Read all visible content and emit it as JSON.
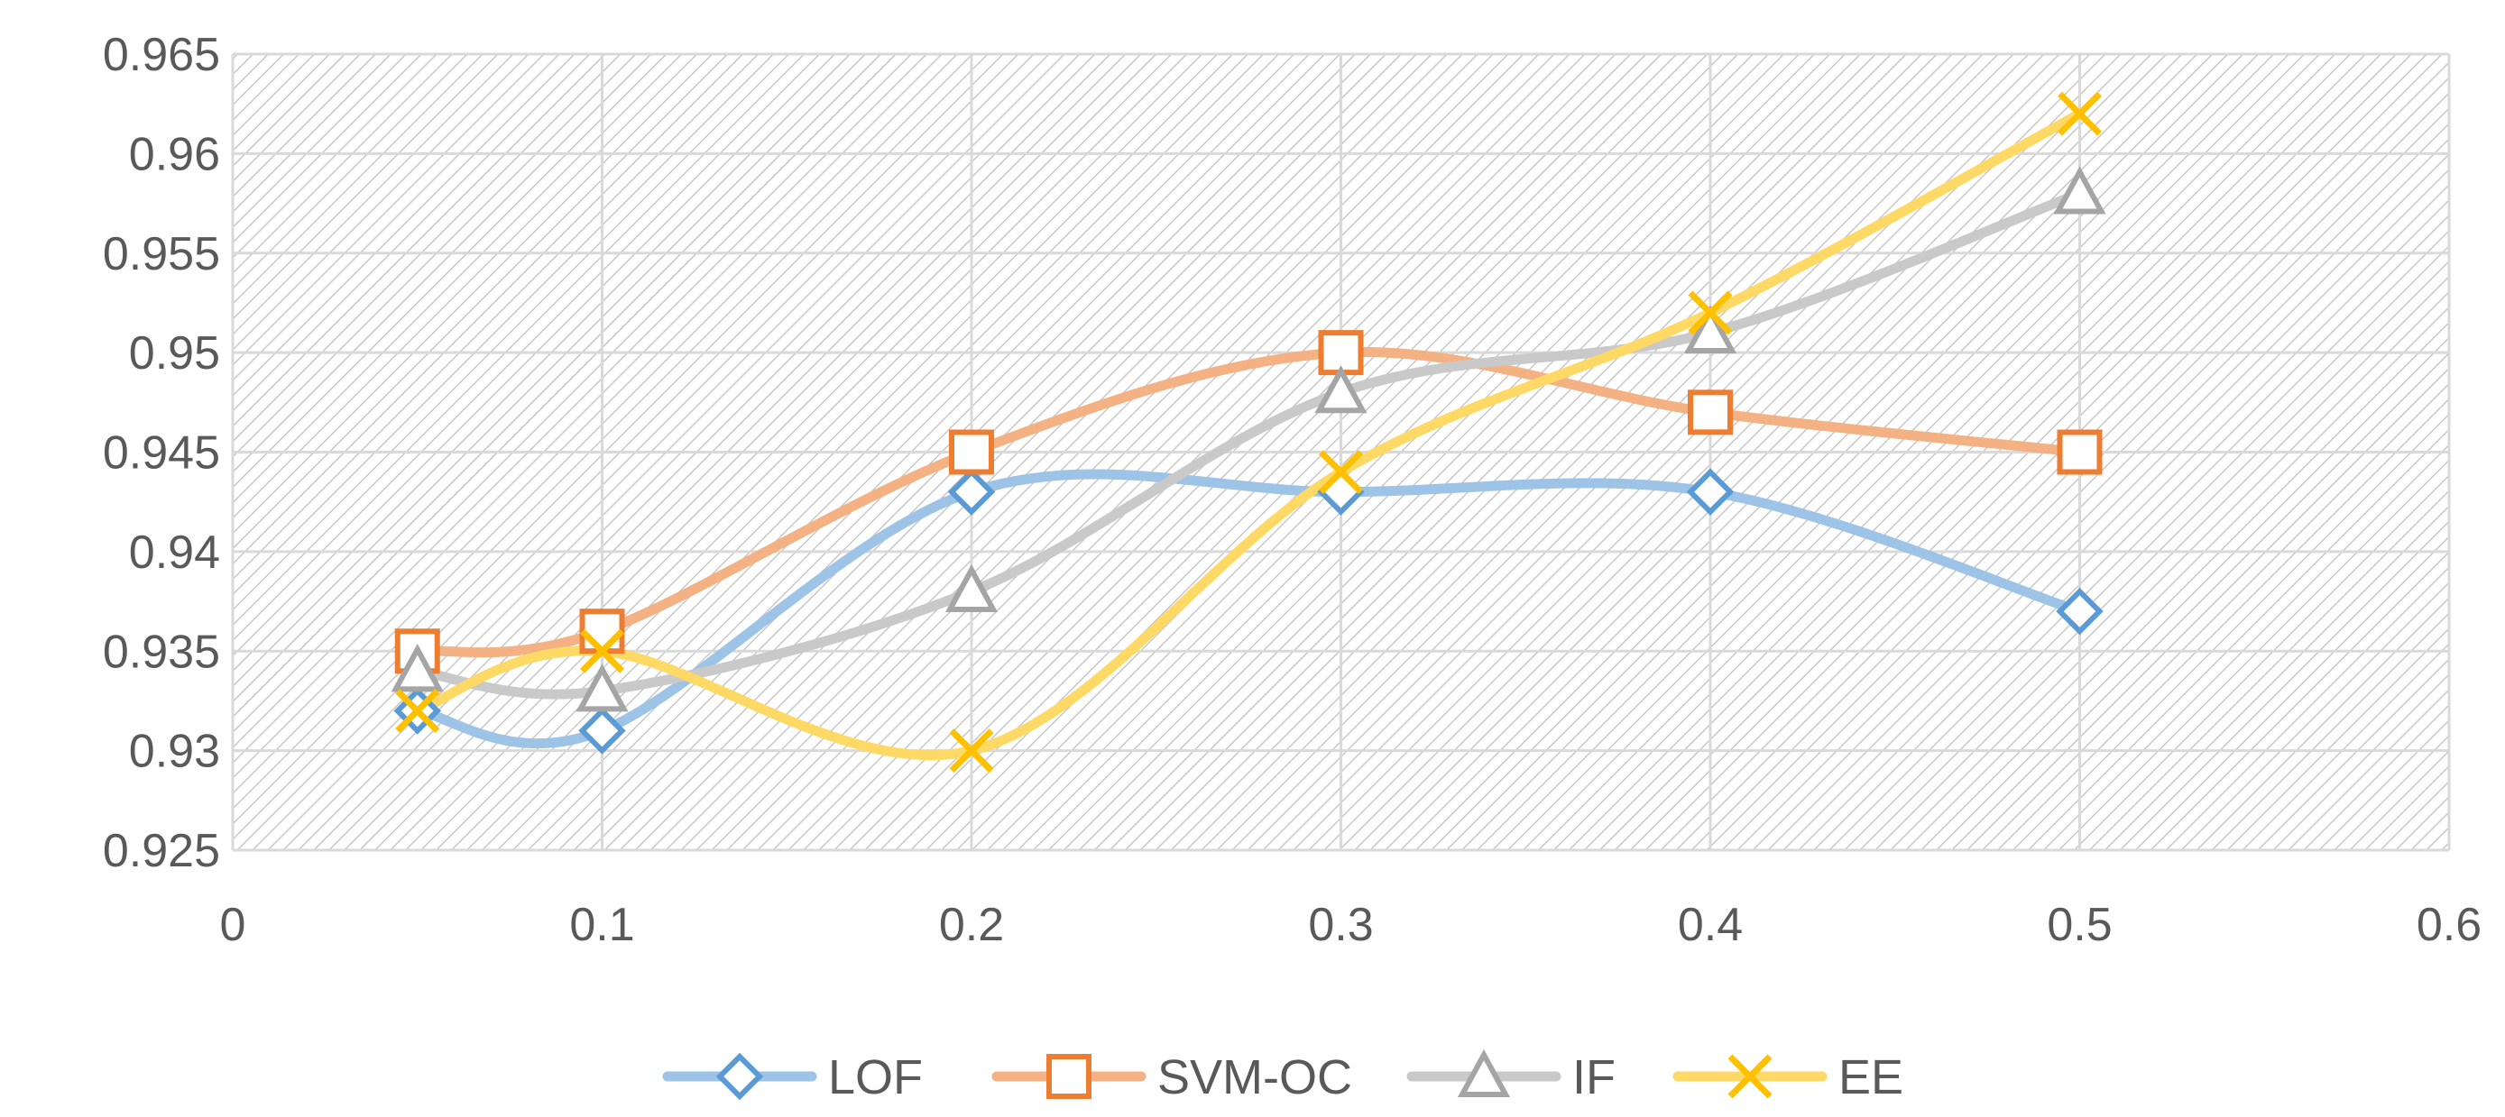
{
  "chart_data": {
    "type": "line",
    "title": "",
    "xlabel": "",
    "ylabel": "",
    "xlim": [
      0,
      0.6
    ],
    "ylim": [
      0.925,
      0.965
    ],
    "x_ticks": [
      "0",
      "0.1",
      "0.2",
      "0.3",
      "0.4",
      "0.5",
      "0.6"
    ],
    "y_ticks": [
      "0.925",
      "0.93",
      "0.935",
      "0.94",
      "0.945",
      "0.95",
      "0.955",
      "0.96",
      "0.965"
    ],
    "grid": true,
    "smooth": true,
    "legend_position": "bottom",
    "x": [
      0.05,
      0.1,
      0.2,
      0.3,
      0.4,
      0.5
    ],
    "series": [
      {
        "name": "LOF",
        "values": [
          0.932,
          0.931,
          0.943,
          0.943,
          0.943,
          0.937
        ],
        "line_color": "#9DC3E6",
        "marker_color": "#5B9BD5",
        "marker": "diamond"
      },
      {
        "name": "SVM-OC",
        "values": [
          0.935,
          0.936,
          0.945,
          0.95,
          0.947,
          0.945
        ],
        "line_color": "#F4B183",
        "marker_color": "#ED7D31",
        "marker": "square"
      },
      {
        "name": "IF",
        "values": [
          0.934,
          0.933,
          0.938,
          0.948,
          0.951,
          0.958
        ],
        "line_color": "#C9C9C9",
        "marker_color": "#A5A5A5",
        "marker": "triangle"
      },
      {
        "name": "EE",
        "values": [
          0.932,
          0.935,
          0.93,
          0.944,
          0.952,
          0.962
        ],
        "line_color": "#FFD966",
        "marker_color": "#FFC000",
        "marker": "x"
      }
    ]
  }
}
